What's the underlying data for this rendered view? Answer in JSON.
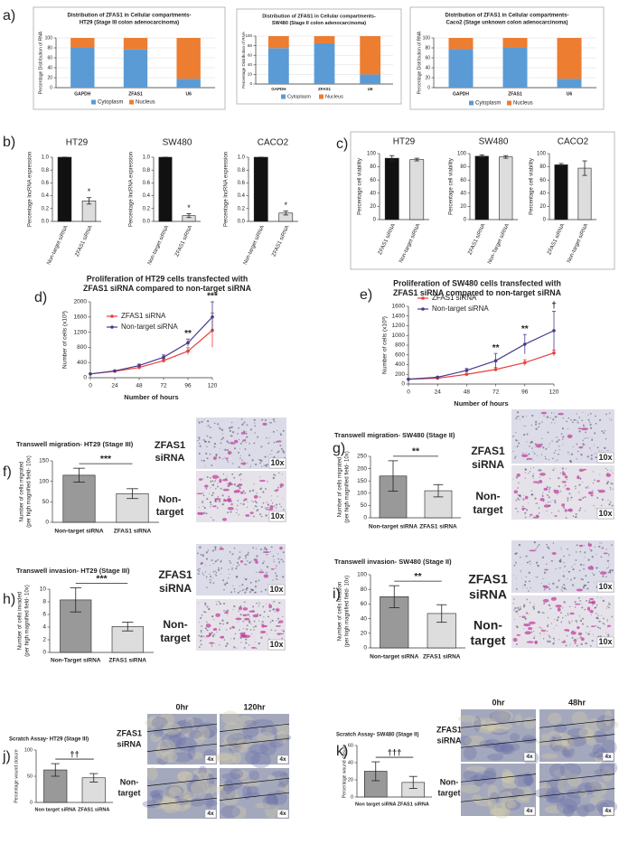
{
  "chart_data": [
    {
      "type": "stacked_bar",
      "title": [
        "Distribution of ZFAS1 in Cellular compartments-",
        "HT29 (Stage III colon adenocarcinoma)"
      ],
      "ylabel": [
        "Percentage Distribution of RNA"
      ],
      "categories": [
        "GAPDH",
        "ZFAS1",
        "U6"
      ],
      "series": [
        {
          "name": "Cytoplasm",
          "color": "#5b9bd5",
          "values": [
            80,
            77,
            18
          ]
        },
        {
          "name": "Nucleus",
          "color": "#ed7d31",
          "values": [
            20,
            23,
            82
          ]
        }
      ],
      "ylim": [
        0,
        100
      ],
      "yticks": [
        0,
        20,
        40,
        60,
        80,
        100
      ],
      "grid": true
    },
    {
      "type": "stacked_bar",
      "title": [
        "Distribution of ZFAS1 in Cellular compartments-",
        "SW480 (Stage II colon adenocarcinoma)"
      ],
      "ylabel": [
        "Percentage Distribution of RNA"
      ],
      "categories": [
        "GAPDH",
        "ZFAS1",
        "U6"
      ],
      "series": [
        {
          "name": "Cytoplasm",
          "color": "#5b9bd5",
          "values": [
            75,
            85,
            20
          ]
        },
        {
          "name": "Nucleus",
          "color": "#ed7d31",
          "values": [
            25,
            15,
            80
          ]
        }
      ],
      "ylim": [
        0,
        100
      ],
      "yticks": [
        0,
        20,
        40,
        60,
        80,
        100
      ],
      "grid": true
    },
    {
      "type": "stacked_bar",
      "title": [
        "Distribution of ZFAS1 in Cellular compartments-",
        "Caco2 (Stage unknown colon adenocarcinoma)"
      ],
      "ylabel": [
        "Percentage Distribution of RNA"
      ],
      "categories": [
        "GAPDH",
        "ZFAS1",
        "U6"
      ],
      "series": [
        {
          "name": "Cytoplasm",
          "color": "#5b9bd5",
          "values": [
            78,
            80,
            18
          ]
        },
        {
          "name": "Nucleus",
          "color": "#ed7d31",
          "values": [
            22,
            20,
            82
          ]
        }
      ],
      "ylim": [
        0,
        100
      ],
      "yticks": [
        0,
        20,
        40,
        60,
        80,
        100
      ],
      "grid": true
    },
    {
      "type": "bar",
      "title": [
        "HT29"
      ],
      "ylabel": [
        "Percentage lncRNA expression"
      ],
      "categories": [
        "Non-target siRNA",
        "ZFAS1 siRNA"
      ],
      "values": [
        1,
        0.32
      ],
      "errors": [
        0,
        0.05
      ],
      "colors": [
        "#111111",
        "#dddddd"
      ],
      "ylim": [
        0,
        1
      ],
      "yticks": [
        {
          "value": 0,
          "label": "0.0"
        },
        0.2,
        0.4,
        0.6,
        0.8,
        {
          "value": 1,
          "label": "1.0"
        }
      ],
      "annotations": [
        {
          "text": "*"
        }
      ]
    },
    {
      "type": "bar",
      "title": [
        "SW480"
      ],
      "ylabel": [
        "Percentage lncRNA expression"
      ],
      "categories": [
        "Non-target siRNA",
        "ZFAS1 siRNA"
      ],
      "values": [
        1,
        0.09
      ],
      "errors": [
        0,
        0.03
      ],
      "colors": [
        "#111111",
        "#dddddd"
      ],
      "ylim": [
        0,
        1
      ],
      "yticks": [
        {
          "value": 0,
          "label": "0.0"
        },
        0.2,
        0.4,
        0.6,
        0.8,
        {
          "value": 1,
          "label": "1.0"
        }
      ],
      "annotations": [
        {
          "text": "*"
        }
      ]
    },
    {
      "type": "bar",
      "title": [
        "CACO2"
      ],
      "ylabel": [
        "Percentage lncRNA expression"
      ],
      "categories": [
        "Non-target siRNA",
        "ZFAS1 siRNA"
      ],
      "values": [
        1,
        0.13
      ],
      "errors": [
        0,
        0.03
      ],
      "colors": [
        "#111111",
        "#dddddd"
      ],
      "ylim": [
        0,
        1
      ],
      "yticks": [
        {
          "value": 0,
          "label": "0.0"
        },
        0.2,
        0.4,
        0.6,
        0.8,
        {
          "value": 1,
          "label": "1.0"
        }
      ],
      "annotations": [
        {
          "text": "*"
        }
      ]
    },
    {
      "type": "bar",
      "title": [
        "HT29"
      ],
      "ylabel": [
        "Percentage cell viability"
      ],
      "categories": [
        "ZFAS1 siRNA",
        "Non-target siRNA"
      ],
      "values": [
        93,
        91
      ],
      "errors": [
        4,
        2
      ],
      "colors": [
        "#111111",
        "#dddddd"
      ],
      "ylim": [
        0,
        100
      ],
      "yticks": [
        0,
        20,
        40,
        60,
        80,
        100
      ]
    },
    {
      "type": "bar",
      "title": [
        "SW480"
      ],
      "ylabel": [
        "Percentage cell viability"
      ],
      "categories": [
        "ZFAS1 siRNA",
        "Non-Target siRNA"
      ],
      "values": [
        96,
        95
      ],
      "errors": [
        2,
        2
      ],
      "colors": [
        "#111111",
        "#dddddd"
      ],
      "ylim": [
        0,
        100
      ],
      "yticks": [
        0,
        20,
        40,
        60,
        80,
        100
      ]
    },
    {
      "type": "bar",
      "title": [
        "CACO2"
      ],
      "ylabel": [
        "Percentage cell viability"
      ],
      "categories": [
        "ZFAS1 siRNA",
        "Non-target siRNA"
      ],
      "values": [
        83,
        78
      ],
      "errors": [
        2,
        11
      ],
      "colors": [
        "#111111",
        "#dddddd"
      ],
      "ylim": [
        0,
        100
      ],
      "yticks": [
        0,
        20,
        40,
        60,
        80,
        100
      ]
    },
    {
      "type": "line",
      "title": [
        "Proliferation of HT29 cells transfected with",
        "ZFAS1 siRNA compared to non-target siRNA"
      ],
      "xlabel": "Number of hours",
      "ylabel": [
        "Number of cells (x10³)"
      ],
      "x": [
        0,
        24,
        48,
        72,
        96,
        120
      ],
      "series": [
        {
          "name": "ZFAS1 siRNA",
          "color": "#e8403c",
          "values": [
            100,
            170,
            270,
            450,
            700,
            1250
          ],
          "errors": [
            10,
            15,
            30,
            50,
            90,
            450
          ]
        },
        {
          "name": "Non-target siRNA",
          "color": "#4a3a8c",
          "values": [
            100,
            180,
            320,
            540,
            920,
            1600
          ],
          "errors": [
            10,
            15,
            40,
            60,
            100,
            400
          ]
        }
      ],
      "xlim": [
        0,
        120
      ],
      "xticks": [
        0,
        24,
        48,
        72,
        96,
        120
      ],
      "ylim": [
        0,
        2000
      ],
      "yticks": [
        0,
        400,
        800,
        1200,
        1600,
        2000
      ],
      "annotations": [
        {
          "text": "**",
          "x": 96
        },
        {
          "text": "***",
          "x": 120
        }
      ]
    },
    {
      "type": "line",
      "title": [
        "Proliferation of SW480 cells transfected with",
        "ZFAS1 siRNA compared to non-target siRNA"
      ],
      "xlabel": "Number of hours",
      "ylabel": [
        "Number of cells (x10³)"
      ],
      "x": [
        0,
        24,
        48,
        72,
        96,
        120
      ],
      "series": [
        {
          "name": "ZFAS1 siRNA",
          "color": "#e8403c",
          "values": [
            100,
            120,
            200,
            300,
            440,
            640
          ],
          "errors": [
            10,
            15,
            20,
            40,
            60,
            60
          ]
        },
        {
          "name": "Non-target siRNA",
          "color": "#4a3a8c",
          "values": [
            100,
            140,
            280,
            480,
            820,
            1100
          ],
          "errors": [
            10,
            15,
            40,
            150,
            200,
            400
          ]
        }
      ],
      "xlim": [
        0,
        120
      ],
      "xticks": [
        0,
        24,
        48,
        72,
        96,
        120
      ],
      "ylim": [
        0,
        1600
      ],
      "yticks": [
        0,
        200,
        400,
        600,
        800,
        1000,
        1200,
        1400,
        1600
      ],
      "annotations": [
        {
          "text": "**",
          "x": 72
        },
        {
          "text": "**",
          "x": 96
        },
        {
          "text": "†",
          "x": 120
        }
      ]
    },
    {
      "type": "bar",
      "title": [
        "Transwell migration- HT29 (Stage III)"
      ],
      "ylabel": [
        "Number of cells migrated",
        "(per high magnified field- 10x)"
      ],
      "categories": [
        "Non-target siRNA",
        "ZFAS1 siRNA"
      ],
      "values": [
        115,
        70
      ],
      "errors": [
        17,
        12
      ],
      "colors": [
        "#999999",
        "#dddddd"
      ],
      "ylim": [
        0,
        150
      ],
      "yticks": [
        0,
        50,
        100,
        150
      ],
      "annotations": [
        {
          "text": "***"
        }
      ]
    },
    {
      "type": "bar",
      "title": [
        "Transwell migration- SW480 (Stage II)"
      ],
      "ylabel": [
        "Number of cells migrated",
        "(per high magnified field- 10x)"
      ],
      "categories": [
        "Non-target siRNA",
        "ZFAS1 siRNA"
      ],
      "values": [
        170,
        110
      ],
      "errors": [
        62,
        25
      ],
      "colors": [
        "#999999",
        "#dddddd"
      ],
      "ylim": [
        0,
        250
      ],
      "yticks": [
        0,
        50,
        100,
        150,
        200,
        250
      ],
      "annotations": [
        {
          "text": "**"
        }
      ]
    },
    {
      "type": "bar",
      "title": [
        "Transwell invasion- HT29 (Stage III)"
      ],
      "ylabel": [
        "Number of cells invaded",
        "(per high magnified field- 10x)"
      ],
      "categories": [
        "Non-Target siRNA",
        "ZFAS1 siRNA"
      ],
      "values": [
        8.3,
        4.1
      ],
      "errors": [
        1.9,
        0.7
      ],
      "colors": [
        "#999999",
        "#dddddd"
      ],
      "ylim": [
        0,
        10
      ],
      "yticks": [
        0,
        2,
        4,
        6,
        8,
        10
      ],
      "annotations": [
        {
          "text": "***"
        }
      ]
    },
    {
      "type": "bar",
      "title": [
        "Transwell invasion- SW480 (Stage II)"
      ],
      "ylabel": [
        "Number of cells invasion",
        "(per high magnified field- 10x)"
      ],
      "categories": [
        "Non-target siRNA",
        "ZFAS1 siRNA"
      ],
      "values": [
        70,
        47
      ],
      "errors": [
        15,
        12
      ],
      "colors": [
        "#999999",
        "#dddddd"
      ],
      "ylim": [
        0,
        100
      ],
      "yticks": [
        0,
        20,
        40,
        60,
        80,
        100
      ],
      "annotations": [
        {
          "text": "**"
        }
      ]
    },
    {
      "type": "bar",
      "title": [
        "Scratch Assay- HT29 (Stage III)"
      ],
      "ylabel": [
        "Percentage wound closure"
      ],
      "categories": [
        "Non target siRNA",
        "ZFAS1 siRNA"
      ],
      "values": [
        62,
        47
      ],
      "errors": [
        12,
        8
      ],
      "colors": [
        "#999999",
        "#dddddd"
      ],
      "ylim": [
        0,
        100
      ],
      "yticks": [
        0,
        50,
        100
      ],
      "annotations": [
        {
          "text": "††"
        }
      ]
    },
    {
      "type": "bar",
      "title": [
        "Scratch Assay- SW480 (Stage II)"
      ],
      "ylabel": [
        "Percentage wound closure"
      ],
      "categories": [
        "Non target siRNA",
        "ZFAS1 siRNA"
      ],
      "values": [
        30,
        17
      ],
      "errors": [
        11,
        7
      ],
      "colors": [
        "#999999",
        "#dddddd"
      ],
      "ylim": [
        0,
        60
      ],
      "yticks": [
        0,
        20,
        40,
        60
      ],
      "annotations": [
        {
          "text": "†††"
        }
      ]
    }
  ],
  "figure": {
    "panel_labels": [
      "a)",
      "b)",
      "c)",
      "d)",
      "e)",
      "f)",
      "g)",
      "h)",
      "i)",
      "j)",
      "k)"
    ],
    "image_panels": [
      {
        "rows": [
          [
            "ZFAS1",
            "siRNA"
          ],
          [
            "Non-",
            "target"
          ]
        ],
        "mags": [
          "10x",
          "10x"
        ]
      },
      {
        "rows": [
          [
            "ZFAS1",
            "siRNA"
          ],
          [
            "Non-",
            "target"
          ]
        ],
        "mags": [
          "10x",
          "10x"
        ]
      },
      {
        "rows": [
          [
            "ZFAS1",
            "siRNA"
          ],
          [
            "Non-",
            "target"
          ]
        ],
        "mags": [
          "10x",
          "10x"
        ]
      },
      {
        "rows": [
          [
            "ZFAS1",
            "siRNA"
          ],
          [
            "Non-",
            "target"
          ]
        ],
        "mags": [
          "10x",
          "10x"
        ]
      },
      {
        "columns": [
          "0hr",
          "120hr"
        ],
        "rows": [
          [
            "ZFAS1",
            "siRNA"
          ],
          [
            "Non-",
            "target"
          ]
        ],
        "mags": [
          "4x",
          "4x",
          "4x",
          "4x"
        ]
      },
      {
        "columns": [
          "0hr",
          "48hr"
        ],
        "rows": [
          [
            "ZFAS1",
            "siRNA"
          ],
          [
            "Non-",
            "target"
          ]
        ],
        "mags": [
          "4x",
          "4x",
          "4x",
          "4x"
        ]
      }
    ]
  }
}
